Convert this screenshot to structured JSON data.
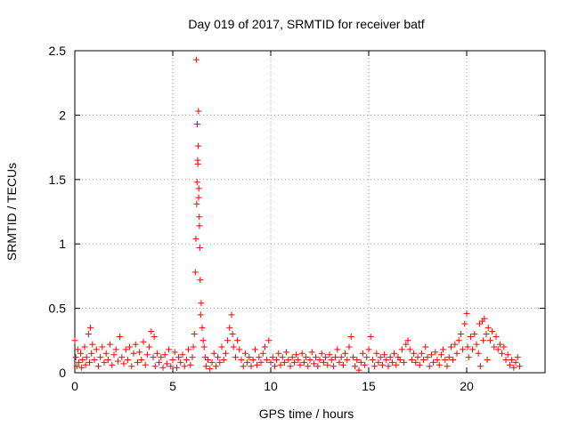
{
  "chart_data": {
    "type": "scatter",
    "title": "Day 019 of 2017, SRMTID for receiver batf",
    "xlabel": "GPS time / hours",
    "ylabel": "SRMTID / TECUs",
    "xlim": [
      0,
      24
    ],
    "ylim": [
      0,
      2.5
    ],
    "x_ticks": [
      0,
      5,
      10,
      15,
      20
    ],
    "x_tick_labels": [
      "0",
      "5",
      "10",
      "15",
      "20"
    ],
    "y_ticks": [
      0,
      0.5,
      1,
      1.5,
      2,
      2.5
    ],
    "y_tick_labels": [
      "0",
      "0.5",
      "1",
      "1.5",
      "2",
      "2.5"
    ],
    "grid": true,
    "marker": "+",
    "marker_color": "#ff0000",
    "series": [
      {
        "name": "SRMTID",
        "points": [
          [
            0.0,
            0.25
          ],
          [
            0.05,
            0.12
          ],
          [
            0.1,
            0.05
          ],
          [
            0.15,
            0.18
          ],
          [
            0.2,
            0.08
          ],
          [
            0.3,
            0.15
          ],
          [
            0.35,
            0.04
          ],
          [
            0.4,
            0.1
          ],
          [
            0.5,
            0.2
          ],
          [
            0.55,
            0.06
          ],
          [
            0.6,
            0.12
          ],
          [
            0.7,
            0.3
          ],
          [
            0.75,
            0.08
          ],
          [
            0.8,
            0.35
          ],
          [
            0.85,
            0.15
          ],
          [
            0.9,
            0.22
          ],
          [
            1.0,
            0.1
          ],
          [
            1.1,
            0.18
          ],
          [
            1.2,
            0.05
          ],
          [
            1.3,
            0.12
          ],
          [
            1.4,
            0.2
          ],
          [
            1.5,
            0.08
          ],
          [
            1.6,
            0.15
          ],
          [
            1.7,
            0.1
          ],
          [
            1.8,
            0.22
          ],
          [
            1.9,
            0.06
          ],
          [
            2.0,
            0.14
          ],
          [
            2.1,
            0.18
          ],
          [
            2.2,
            0.09
          ],
          [
            2.3,
            0.28
          ],
          [
            2.4,
            0.12
          ],
          [
            2.5,
            0.07
          ],
          [
            2.6,
            0.18
          ],
          [
            2.7,
            0.1
          ],
          [
            2.8,
            0.2
          ],
          [
            2.9,
            0.05
          ],
          [
            3.0,
            0.15
          ],
          [
            3.1,
            0.22
          ],
          [
            3.2,
            0.08
          ],
          [
            3.3,
            0.16
          ],
          [
            3.4,
            0.1
          ],
          [
            3.5,
            0.24
          ],
          [
            3.6,
            0.06
          ],
          [
            3.7,
            0.14
          ],
          [
            3.8,
            0.2
          ],
          [
            3.9,
            0.32
          ],
          [
            4.0,
            0.12
          ],
          [
            4.05,
            0.28
          ],
          [
            4.1,
            0.05
          ],
          [
            4.2,
            0.15
          ],
          [
            4.3,
            0.08
          ],
          [
            4.4,
            0.12
          ],
          [
            4.5,
            0.04
          ],
          [
            4.6,
            0.14
          ],
          [
            4.7,
            0.07
          ],
          [
            4.8,
            0.18
          ],
          [
            4.9,
            0.05
          ],
          [
            5.0,
            0.1
          ],
          [
            5.1,
            0.16
          ],
          [
            5.2,
            0.04
          ],
          [
            5.3,
            0.12
          ],
          [
            5.4,
            0.08
          ],
          [
            5.5,
            0.14
          ],
          [
            5.6,
            0.05
          ],
          [
            5.7,
            0.1
          ],
          [
            5.8,
            0.18
          ],
          [
            5.9,
            0.06
          ],
          [
            6.0,
            0.12
          ],
          [
            6.05,
            0.2
          ],
          [
            6.1,
            0.3
          ],
          [
            6.15,
            0.78
          ],
          [
            6.18,
            1.04
          ],
          [
            6.2,
            2.43
          ],
          [
            6.22,
            1.31
          ],
          [
            6.24,
            1.48
          ],
          [
            6.25,
            1.93
          ],
          [
            6.27,
            1.65
          ],
          [
            6.28,
            1.62
          ],
          [
            6.3,
            1.76
          ],
          [
            6.31,
            2.03
          ],
          [
            6.32,
            1.36
          ],
          [
            6.33,
            1.43
          ],
          [
            6.35,
            1.21
          ],
          [
            6.36,
            1.14
          ],
          [
            6.38,
            0.97
          ],
          [
            6.4,
            0.72
          ],
          [
            6.42,
            0.45
          ],
          [
            6.45,
            0.54
          ],
          [
            6.5,
            0.35
          ],
          [
            6.55,
            0.25
          ],
          [
            6.6,
            0.2
          ],
          [
            6.65,
            0.12
          ],
          [
            6.7,
            0.05
          ],
          [
            6.8,
            0.1
          ],
          [
            6.9,
            0.03
          ],
          [
            7.0,
            0.08
          ],
          [
            7.1,
            0.15
          ],
          [
            7.2,
            0.05
          ],
          [
            7.3,
            0.12
          ],
          [
            7.4,
            0.08
          ],
          [
            7.5,
            0.2
          ],
          [
            7.6,
            0.1
          ],
          [
            7.7,
            0.15
          ],
          [
            7.8,
            0.25
          ],
          [
            7.9,
            0.35
          ],
          [
            8.0,
            0.45
          ],
          [
            8.05,
            0.3
          ],
          [
            8.1,
            0.2
          ],
          [
            8.2,
            0.12
          ],
          [
            8.3,
            0.25
          ],
          [
            8.4,
            0.18
          ],
          [
            8.5,
            0.1
          ],
          [
            8.6,
            0.05
          ],
          [
            8.7,
            0.15
          ],
          [
            8.8,
            0.08
          ],
          [
            8.9,
            0.12
          ],
          [
            9.0,
            0.05
          ],
          [
            9.1,
            0.1
          ],
          [
            9.2,
            0.18
          ],
          [
            9.3,
            0.06
          ],
          [
            9.4,
            0.12
          ],
          [
            9.5,
            0.08
          ],
          [
            9.6,
            0.15
          ],
          [
            9.7,
            0.2
          ],
          [
            9.8,
            0.1
          ],
          [
            9.9,
            0.25
          ],
          [
            10.0,
            0.08
          ],
          [
            10.1,
            0.12
          ],
          [
            10.2,
            0.05
          ],
          [
            10.3,
            0.1
          ],
          [
            10.4,
            0.15
          ],
          [
            10.5,
            0.06
          ],
          [
            10.6,
            0.12
          ],
          [
            10.7,
            0.08
          ],
          [
            10.8,
            0.16
          ],
          [
            10.9,
            0.1
          ],
          [
            11.0,
            0.05
          ],
          [
            11.1,
            0.12
          ],
          [
            11.2,
            0.08
          ],
          [
            11.3,
            0.14
          ],
          [
            11.4,
            0.1
          ],
          [
            11.5,
            0.06
          ],
          [
            11.6,
            0.15
          ],
          [
            11.7,
            0.08
          ],
          [
            11.8,
            0.12
          ],
          [
            11.9,
            0.05
          ],
          [
            12.0,
            0.1
          ],
          [
            12.1,
            0.16
          ],
          [
            12.2,
            0.07
          ],
          [
            12.3,
            0.12
          ],
          [
            12.4,
            0.05
          ],
          [
            12.5,
            0.1
          ],
          [
            12.6,
            0.15
          ],
          [
            12.7,
            0.08
          ],
          [
            12.8,
            0.12
          ],
          [
            12.9,
            0.06
          ],
          [
            13.0,
            0.14
          ],
          [
            13.1,
            0.1
          ],
          [
            13.2,
            0.05
          ],
          [
            13.3,
            0.12
          ],
          [
            13.4,
            0.18
          ],
          [
            13.5,
            0.08
          ],
          [
            13.6,
            0.12
          ],
          [
            13.7,
            0.06
          ],
          [
            13.8,
            0.15
          ],
          [
            13.9,
            0.1
          ],
          [
            14.0,
            0.2
          ],
          [
            14.1,
            0.28
          ],
          [
            14.2,
            0.12
          ],
          [
            14.3,
            0.05
          ],
          [
            14.4,
            0.1
          ],
          [
            14.5,
            0.02
          ],
          [
            14.6,
            0.08
          ],
          [
            14.7,
            0.15
          ],
          [
            14.8,
            0.06
          ],
          [
            14.9,
            0.12
          ],
          [
            15.0,
            0.18
          ],
          [
            15.1,
            0.28
          ],
          [
            15.2,
            0.1
          ],
          [
            15.3,
            0.05
          ],
          [
            15.4,
            0.15
          ],
          [
            15.5,
            0.08
          ],
          [
            15.6,
            0.12
          ],
          [
            15.7,
            0.06
          ],
          [
            15.8,
            0.14
          ],
          [
            15.9,
            0.1
          ],
          [
            16.0,
            0.05
          ],
          [
            16.1,
            0.12
          ],
          [
            16.2,
            0.08
          ],
          [
            16.3,
            0.15
          ],
          [
            16.4,
            0.06
          ],
          [
            16.5,
            0.12
          ],
          [
            16.6,
            0.1
          ],
          [
            16.7,
            0.18
          ],
          [
            16.8,
            0.08
          ],
          [
            16.9,
            0.22
          ],
          [
            17.0,
            0.25
          ],
          [
            17.1,
            0.18
          ],
          [
            17.2,
            0.1
          ],
          [
            17.3,
            0.15
          ],
          [
            17.4,
            0.08
          ],
          [
            17.5,
            0.12
          ],
          [
            17.6,
            0.06
          ],
          [
            17.7,
            0.15
          ],
          [
            17.8,
            0.1
          ],
          [
            17.9,
            0.2
          ],
          [
            18.0,
            0.12
          ],
          [
            18.1,
            0.05
          ],
          [
            18.2,
            0.14
          ],
          [
            18.3,
            0.08
          ],
          [
            18.4,
            0.16
          ],
          [
            18.5,
            0.1
          ],
          [
            18.6,
            0.06
          ],
          [
            18.7,
            0.14
          ],
          [
            18.8,
            0.18
          ],
          [
            18.9,
            0.1
          ],
          [
            19.0,
            0.05
          ],
          [
            19.1,
            0.12
          ],
          [
            19.2,
            0.2
          ],
          [
            19.3,
            0.1
          ],
          [
            19.4,
            0.22
          ],
          [
            19.5,
            0.15
          ],
          [
            19.6,
            0.25
          ],
          [
            19.7,
            0.3
          ],
          [
            19.8,
            0.18
          ],
          [
            19.9,
            0.38
          ],
          [
            20.0,
            0.46
          ],
          [
            20.05,
            0.2
          ],
          [
            20.1,
            0.12
          ],
          [
            20.2,
            0.28
          ],
          [
            20.3,
            0.18
          ],
          [
            20.4,
            0.3
          ],
          [
            20.5,
            0.22
          ],
          [
            20.6,
            0.15
          ],
          [
            20.65,
            0.38
          ],
          [
            20.7,
            0.05
          ],
          [
            20.8,
            0.4
          ],
          [
            20.85,
            0.25
          ],
          [
            20.9,
            0.42
          ],
          [
            21.0,
            0.3
          ],
          [
            21.05,
            0.1
          ],
          [
            21.1,
            0.35
          ],
          [
            21.2,
            0.25
          ],
          [
            21.3,
            0.32
          ],
          [
            21.4,
            0.2
          ],
          [
            21.5,
            0.28
          ],
          [
            21.6,
            0.18
          ],
          [
            21.7,
            0.22
          ],
          [
            21.8,
            0.15
          ],
          [
            21.9,
            0.2
          ],
          [
            22.0,
            0.1
          ],
          [
            22.1,
            0.14
          ],
          [
            22.2,
            0.06
          ],
          [
            22.3,
            0.1
          ],
          [
            22.4,
            0.04
          ],
          [
            22.5,
            0.08
          ],
          [
            22.6,
            0.12
          ],
          [
            22.7,
            0.05
          ]
        ]
      }
    ]
  }
}
